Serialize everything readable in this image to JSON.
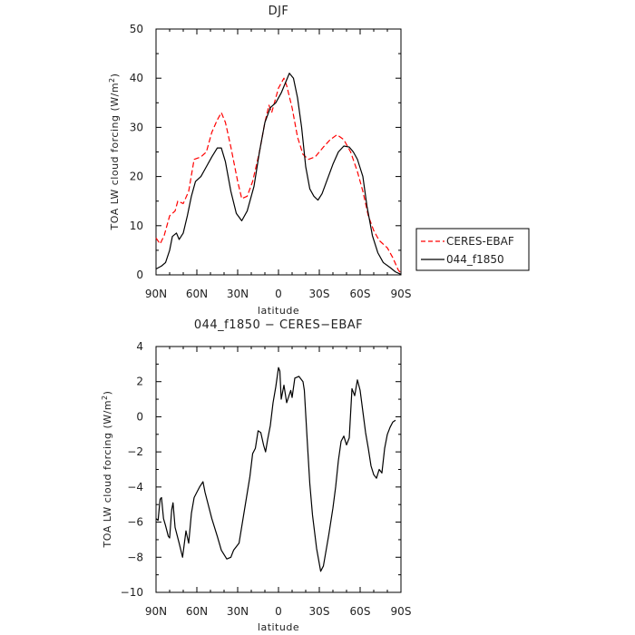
{
  "chart_data": [
    {
      "type": "line",
      "title": "DJF",
      "xlabel": "latitude",
      "ylabel": "TOA LW cloud forcing (W/m",
      "ylabel_sup": "2",
      "ylabel_tail": ")",
      "xlim": [
        90,
        -90
      ],
      "ylim": [
        0,
        50
      ],
      "x_ticks": [
        90,
        60,
        30,
        0,
        -30,
        -60,
        -90
      ],
      "x_tick_labels": [
        "90N",
        "60N",
        "30N",
        "0",
        "30S",
        "60S",
        "90S"
      ],
      "y_ticks": [
        0,
        10,
        20,
        30,
        40,
        50
      ],
      "y_tick_labels": [
        "0",
        "10",
        "20",
        "30",
        "40",
        "50"
      ],
      "legend": "right",
      "series": [
        {
          "name": "CERES-EBAF",
          "color": "#ff0000",
          "style": "dashed",
          "points": [
            [
              90,
              7.5
            ],
            [
              87,
              6.3
            ],
            [
              84,
              8
            ],
            [
              80,
              12
            ],
            [
              76,
              13
            ],
            [
              74,
              15
            ],
            [
              70,
              14.5
            ],
            [
              66,
              17
            ],
            [
              62,
              23.5
            ],
            [
              57,
              24
            ],
            [
              53,
              25
            ],
            [
              49,
              29
            ],
            [
              45,
              31.5
            ],
            [
              42,
              33
            ],
            [
              39,
              31
            ],
            [
              35,
              26
            ],
            [
              30,
              19
            ],
            [
              27,
              15.5
            ],
            [
              23,
              16
            ],
            [
              19,
              19
            ],
            [
              14,
              25
            ],
            [
              10,
              31
            ],
            [
              7,
              34.5
            ],
            [
              5,
              33
            ],
            [
              3,
              35
            ],
            [
              0,
              38
            ],
            [
              -4,
              40
            ],
            [
              -6,
              38.5
            ],
            [
              -10,
              34
            ],
            [
              -14,
              28
            ],
            [
              -18,
              24.5
            ],
            [
              -22,
              23.5
            ],
            [
              -27,
              24
            ],
            [
              -33,
              26
            ],
            [
              -38,
              27.5
            ],
            [
              -43,
              28.5
            ],
            [
              -48,
              27.5
            ],
            [
              -53,
              25
            ],
            [
              -58,
              21
            ],
            [
              -62,
              17
            ],
            [
              -66,
              12
            ],
            [
              -70,
              9
            ],
            [
              -74,
              7
            ],
            [
              -80,
              5.5
            ],
            [
              -84,
              3.5
            ],
            [
              -88,
              1
            ],
            [
              -90,
              0.3
            ]
          ]
        },
        {
          "name": "044_f1850",
          "color": "#000000",
          "style": "solid",
          "points": [
            [
              90,
              1.2
            ],
            [
              86,
              1.8
            ],
            [
              83,
              2.5
            ],
            [
              80,
              5
            ],
            [
              78,
              7.8
            ],
            [
              75,
              8.5
            ],
            [
              73,
              7.2
            ],
            [
              70,
              8.5
            ],
            [
              67,
              12
            ],
            [
              64,
              16
            ],
            [
              61,
              19
            ],
            [
              57,
              20
            ],
            [
              53,
              22
            ],
            [
              49,
              24
            ],
            [
              45,
              25.8
            ],
            [
              42,
              25.8
            ],
            [
              39,
              23
            ],
            [
              35,
              17
            ],
            [
              31,
              12.5
            ],
            [
              27,
              11
            ],
            [
              23,
              13
            ],
            [
              18,
              18
            ],
            [
              14,
              25
            ],
            [
              10,
              31
            ],
            [
              6,
              34
            ],
            [
              2,
              35
            ],
            [
              -2,
              37
            ],
            [
              -5,
              39
            ],
            [
              -8,
              41
            ],
            [
              -11,
              40
            ],
            [
              -14,
              36
            ],
            [
              -17,
              30
            ],
            [
              -20,
              22
            ],
            [
              -23,
              17.5
            ],
            [
              -26,
              16
            ],
            [
              -29,
              15.2
            ],
            [
              -32,
              16.5
            ],
            [
              -36,
              19.5
            ],
            [
              -40,
              22.5
            ],
            [
              -44,
              25
            ],
            [
              -48,
              26.2
            ],
            [
              -52,
              26
            ],
            [
              -55,
              25
            ],
            [
              -58,
              23.5
            ],
            [
              -62,
              20
            ],
            [
              -65,
              14
            ],
            [
              -69,
              8
            ],
            [
              -73,
              4.5
            ],
            [
              -77,
              2.5
            ],
            [
              -82,
              1.5
            ],
            [
              -86,
              0.6
            ],
            [
              -90,
              0.1
            ]
          ]
        }
      ]
    },
    {
      "type": "line",
      "title": "044_f1850 − CERES−EBAF",
      "xlabel": "latitude",
      "ylabel": "TOA LW cloud forcing (W/m",
      "ylabel_sup": "2",
      "ylabel_tail": ")",
      "xlim": [
        90,
        -90
      ],
      "ylim": [
        -10,
        4
      ],
      "x_ticks": [
        90,
        60,
        30,
        0,
        -30,
        -60,
        -90
      ],
      "x_tick_labels": [
        "90N",
        "60N",
        "30N",
        "0",
        "30S",
        "60S",
        "90S"
      ],
      "y_ticks": [
        -10,
        -8,
        -6,
        -4,
        -2,
        0,
        2,
        4
      ],
      "y_tick_labels": [
        "−10",
        "−8",
        "−6",
        "−4",
        "−2",
        "0",
        "2",
        "4"
      ],
      "series": [
        {
          "color": "#000000",
          "style": "solid",
          "points": [
            [
              90,
              -5.8
            ],
            [
              88.5,
              -5.9
            ],
            [
              87,
              -4.7
            ],
            [
              86,
              -4.6
            ],
            [
              84.5,
              -5.8
            ],
            [
              83,
              -6.2
            ],
            [
              81,
              -6.8
            ],
            [
              80,
              -6.9
            ],
            [
              78.5,
              -5.3
            ],
            [
              77.5,
              -4.9
            ],
            [
              76,
              -6.3
            ],
            [
              73,
              -7.2
            ],
            [
              70.5,
              -8.0
            ],
            [
              68,
              -6.5
            ],
            [
              66,
              -7.2
            ],
            [
              64,
              -5.5
            ],
            [
              62,
              -4.6
            ],
            [
              60,
              -4.3
            ],
            [
              58,
              -4.0
            ],
            [
              55.5,
              -3.7
            ],
            [
              54,
              -4.3
            ],
            [
              52,
              -4.9
            ],
            [
              49,
              -5.8
            ],
            [
              45,
              -6.8
            ],
            [
              42,
              -7.6
            ],
            [
              38,
              -8.1
            ],
            [
              35,
              -8.0
            ],
            [
              33,
              -7.6
            ],
            [
              29,
              -7.2
            ],
            [
              25,
              -5.3
            ],
            [
              21,
              -3.4
            ],
            [
              19,
              -2.1
            ],
            [
              17,
              -1.8
            ],
            [
              15,
              -0.8
            ],
            [
              13,
              -0.9
            ],
            [
              11,
              -1.6
            ],
            [
              9.5,
              -2.0
            ],
            [
              8,
              -1.3
            ],
            [
              6,
              -0.5
            ],
            [
              4,
              0.8
            ],
            [
              2,
              1.7
            ],
            [
              0,
              2.8
            ],
            [
              -1,
              2.6
            ],
            [
              -2,
              1.0
            ],
            [
              -4,
              1.8
            ],
            [
              -6,
              0.8
            ],
            [
              -9,
              1.5
            ],
            [
              -10,
              1.1
            ],
            [
              -12,
              2.2
            ],
            [
              -15,
              2.3
            ],
            [
              -18,
              2.0
            ],
            [
              -19,
              1.5
            ],
            [
              -21,
              -1.2
            ],
            [
              -23,
              -3.8
            ],
            [
              -25,
              -5.6
            ],
            [
              -28,
              -7.5
            ],
            [
              -31,
              -8.8
            ],
            [
              -33,
              -8.5
            ],
            [
              -35,
              -7.6
            ],
            [
              -37,
              -6.7
            ],
            [
              -40,
              -5.2
            ],
            [
              -42,
              -4.0
            ],
            [
              -44,
              -2.5
            ],
            [
              -46,
              -1.4
            ],
            [
              -48,
              -1.1
            ],
            [
              -50,
              -1.6
            ],
            [
              -52,
              -1.2
            ],
            [
              -54,
              1.6
            ],
            [
              -56,
              1.2
            ],
            [
              -58,
              2.1
            ],
            [
              -60,
              1.5
            ],
            [
              -62,
              0.3
            ],
            [
              -64,
              -0.9
            ],
            [
              -66,
              -1.8
            ],
            [
              -68,
              -2.8
            ],
            [
              -70,
              -3.3
            ],
            [
              -72,
              -3.5
            ],
            [
              -74,
              -3.0
            ],
            [
              -76,
              -3.2
            ],
            [
              -78,
              -1.8
            ],
            [
              -80,
              -1.0
            ],
            [
              -82,
              -0.6
            ],
            [
              -84,
              -0.3
            ],
            [
              -86,
              -0.2
            ]
          ]
        }
      ]
    }
  ]
}
